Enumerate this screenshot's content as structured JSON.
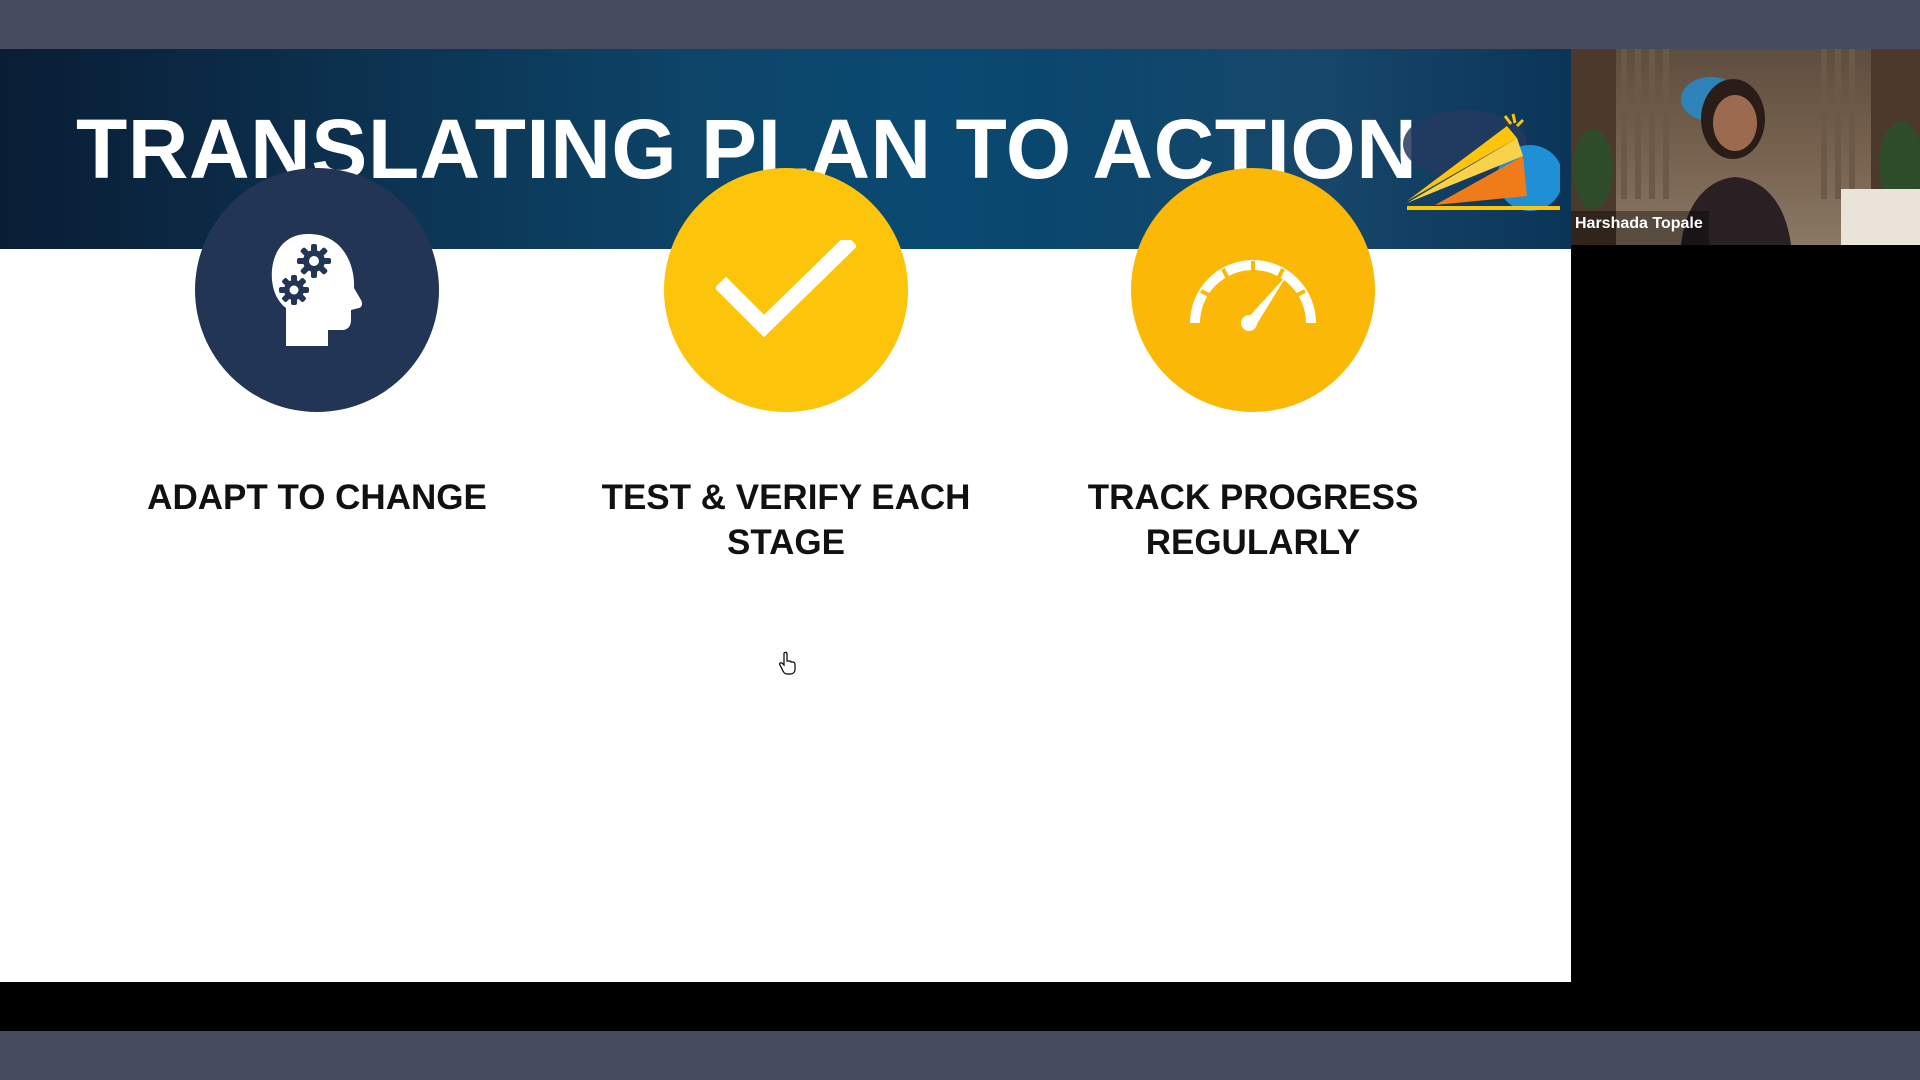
{
  "slide": {
    "title": "TRANSLATING PLAN TO ACTION",
    "logo_icon": "sunrise-cloud-logo",
    "features": [
      {
        "label": "ADAPT TO CHANGE",
        "icon": "head-gears-icon",
        "color": "#233555"
      },
      {
        "label": "TEST & VERIFY EACH STAGE",
        "icon": "checkmark-icon",
        "color": "#fcc40a"
      },
      {
        "label": "TRACK PROGRESS REGULARLY",
        "icon": "speedometer-icon",
        "color": "#fbb806"
      }
    ]
  },
  "participant": {
    "name": "Harshada Topale"
  },
  "colors": {
    "background": "#464c5d",
    "header": "#0b4066",
    "slide_body": "#ffffff",
    "navy": "#233555",
    "yellow": "#fcc40a",
    "amber": "#fbb806"
  }
}
